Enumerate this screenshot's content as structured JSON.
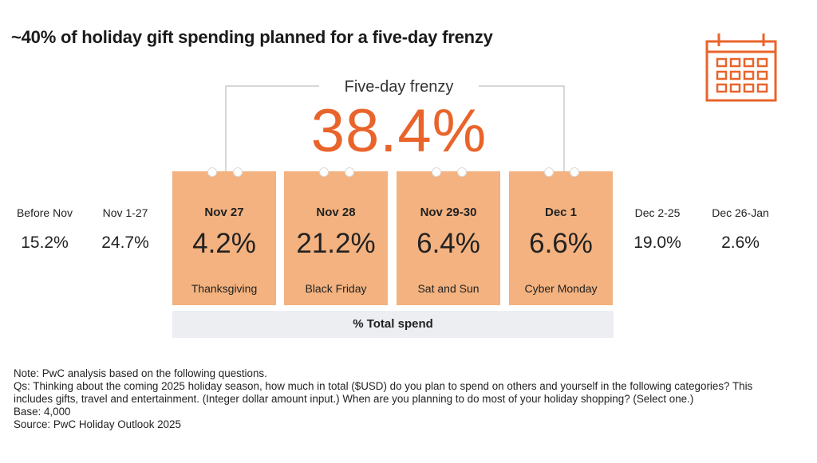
{
  "title": "~40% of holiday gift spending planned for a five-day frenzy",
  "frenzy": {
    "label": "Five-day frenzy",
    "value": "38.4%"
  },
  "colors": {
    "accent": "#e9642b",
    "card": "#f3b27f",
    "total_bar": "#eceef2"
  },
  "icon": "calendar-icon",
  "chart_data": {
    "type": "table",
    "title": "~40% of holiday gift spending planned for a five-day frenzy",
    "measure": "% Total spend",
    "unit": "%",
    "highlight": {
      "label": "Five-day frenzy",
      "value": 38.4,
      "periods": [
        "Nov 27",
        "Nov 28",
        "Nov 29-30",
        "Dec 1"
      ]
    },
    "periods": [
      {
        "label": "Before Nov",
        "value": 15.2,
        "display": "15.2%",
        "note": ""
      },
      {
        "label": "Nov 1-27",
        "value": 24.7,
        "display": "24.7%",
        "note": ""
      },
      {
        "label": "Nov 27",
        "value": 4.2,
        "display": "4.2%",
        "note": "Thanksgiving"
      },
      {
        "label": "Nov 28",
        "value": 21.2,
        "display": "21.2%",
        "note": "Black Friday"
      },
      {
        "label": "Nov 29-30",
        "value": 6.4,
        "display": "6.4%",
        "note": "Sat and Sun"
      },
      {
        "label": "Dec 1",
        "value": 6.6,
        "display": "6.6%",
        "note": "Cyber Monday"
      },
      {
        "label": "Dec 2-25",
        "value": 19.0,
        "display": "19.0%",
        "note": ""
      },
      {
        "label": "Dec 26-Jan",
        "value": 2.6,
        "display": "2.6%",
        "note": ""
      }
    ]
  },
  "notes": [
    "Note: PwC analysis based on the following questions.",
    "Qs: Thinking about the coming 2025 holiday season, how much in total ($USD) do you plan to spend on others and yourself in the following categories? This includes gifts, travel and entertainment. (Integer dollar amount input.) When are you planning to do most of your holiday shopping? (Select one.)",
    "Base: 4,000",
    "Source: PwC Holiday Outlook 2025"
  ]
}
